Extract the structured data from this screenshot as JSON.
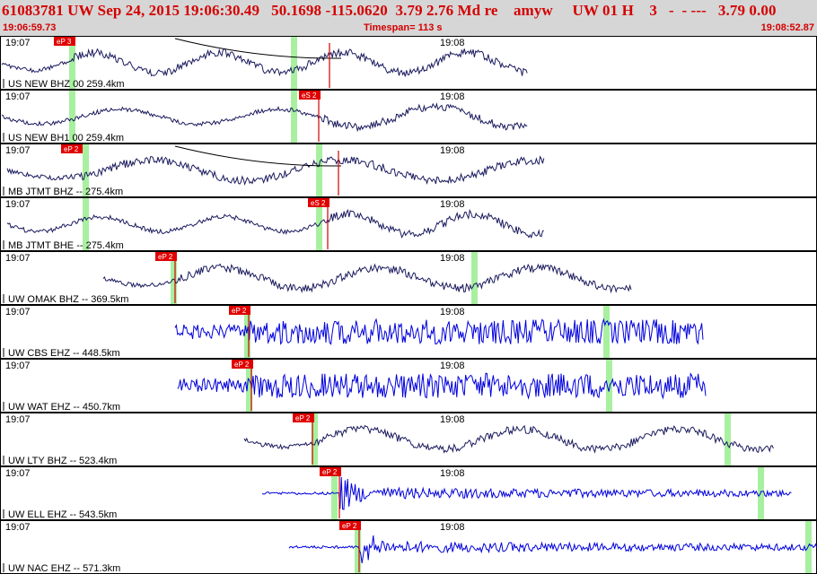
{
  "header": {
    "title": "61083781 UW Sep 24, 2015 19:06:30.49   50.1698 -115.0620  3.79 2.76 Md re    amyw     UW 01 H    3   -  - ---   3.79 0.00",
    "start_time": "19:06:59.73",
    "timespan": "Timespan= 113 s",
    "end_time": "19:08:52.87"
  },
  "colors": {
    "header_bg": "#d6d6d6",
    "header_text": "#d40000",
    "trace_dark": "#1a1a5e",
    "trace_blue": "#0000dd",
    "pick_box": "#e00000",
    "window_green": "#a8f0a0",
    "pick_line": "#d00000"
  },
  "chart_data": {
    "type": "line",
    "title": "61083781 UW Sep 24, 2015 19:06:30.49",
    "xlabel": "",
    "ylabel": "",
    "xlim": [
      "19:06:59.73",
      "19:08:52.87"
    ],
    "timespan_s": 113,
    "minute_labels": [
      "19:07",
      "19:08"
    ],
    "series": [
      {
        "name": "US NEW BHZ 00 259.4km",
        "color": "dark",
        "pick": "eP 3",
        "amp": "medium"
      },
      {
        "name": "US NEW BH1 00 259.4km",
        "color": "dark",
        "pick": "eS 2",
        "amp": "medium"
      },
      {
        "name": "MB JTMT BHZ -- 275.4km",
        "color": "dark",
        "pick": "eP 2",
        "amp": "large"
      },
      {
        "name": "MB JTMT BHE -- 275.4km",
        "color": "dark",
        "pick": "eS 2",
        "amp": "large"
      },
      {
        "name": "UW OMAK BHZ -- 369.5km",
        "color": "dark",
        "pick": "eP 2",
        "amp": "medium"
      },
      {
        "name": "UW CBS EHZ -- 448.5km",
        "color": "blue",
        "pick": "eP 2",
        "amp": "large"
      },
      {
        "name": "UW WAT EHZ -- 450.7km",
        "color": "blue",
        "pick": "eP 2",
        "amp": "large"
      },
      {
        "name": "UW LTY BHZ -- 523.4km",
        "color": "dark",
        "pick": "eP 2",
        "amp": "medium"
      },
      {
        "name": "UW ELL EHZ -- 543.5km",
        "color": "blue",
        "pick": "eP 2",
        "amp": "burst"
      },
      {
        "name": "UW NAC EHZ -- 571.3km",
        "color": "blue",
        "pick": "eP 2",
        "amp": "burst"
      }
    ]
  }
}
